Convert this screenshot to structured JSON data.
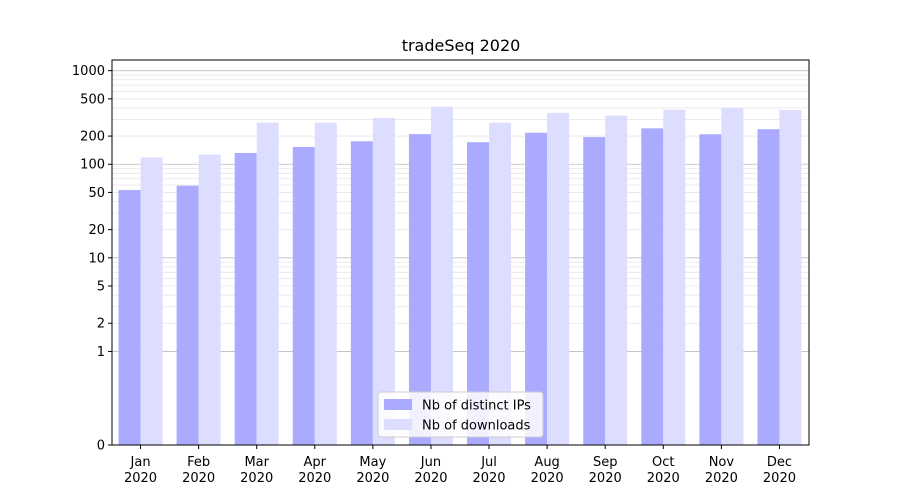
{
  "chart_data": {
    "type": "bar",
    "title": "tradeSeq 2020",
    "xlabel": "",
    "ylabel": "",
    "y_scale": "symlog",
    "ylim": [
      0,
      1300
    ],
    "y_ticks": [
      0,
      1,
      2,
      5,
      10,
      20,
      50,
      100,
      200,
      500,
      1000
    ],
    "y_tick_labels": [
      "0",
      "1",
      "2",
      "5",
      "10",
      "20",
      "50",
      "100",
      "200",
      "500",
      "1000"
    ],
    "grid": true,
    "legend_position": "bottom-center",
    "categories": [
      [
        "Jan",
        "2020"
      ],
      [
        "Feb",
        "2020"
      ],
      [
        "Mar",
        "2020"
      ],
      [
        "Apr",
        "2020"
      ],
      [
        "May",
        "2020"
      ],
      [
        "Jun",
        "2020"
      ],
      [
        "Jul",
        "2020"
      ],
      [
        "Aug",
        "2020"
      ],
      [
        "Sep",
        "2020"
      ],
      [
        "Oct",
        "2020"
      ],
      [
        "Nov",
        "2020"
      ],
      [
        "Dec",
        "2020"
      ]
    ],
    "series": [
      {
        "name": "Nb of distinct IPs",
        "color": "#aaaaff",
        "values": [
          53,
          59,
          132,
          153,
          176,
          210,
          172,
          217,
          195,
          242,
          209,
          237
        ]
      },
      {
        "name": "Nb of downloads",
        "color": "#ddddff",
        "values": [
          118,
          127,
          278,
          278,
          312,
          412,
          278,
          354,
          332,
          383,
          400,
          380
        ]
      }
    ]
  }
}
